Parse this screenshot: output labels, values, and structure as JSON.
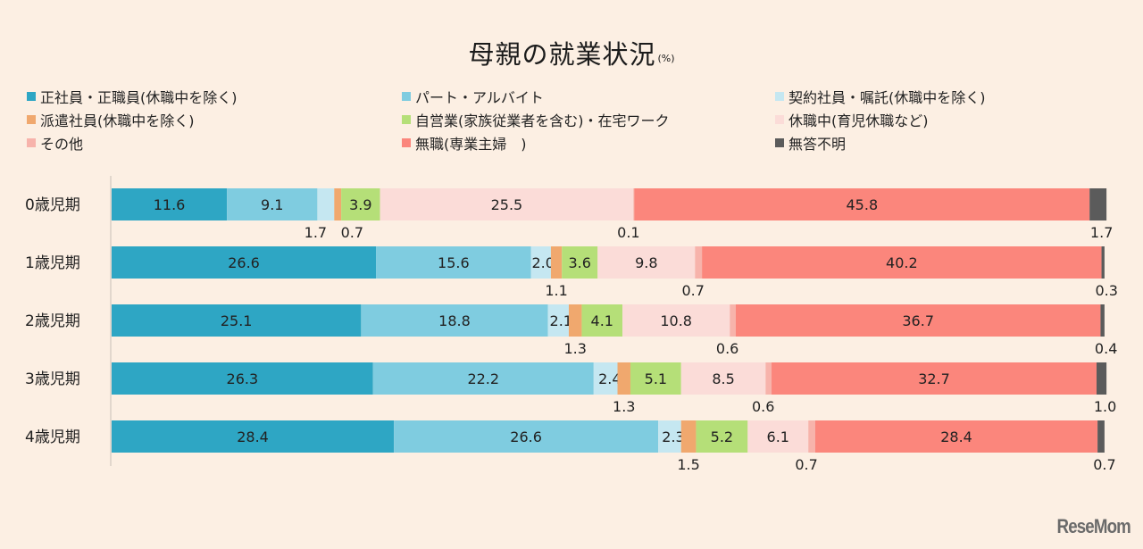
{
  "chart_data": {
    "type": "bar",
    "orientation": "horizontal",
    "stacked": true,
    "title": "母親の就業状況",
    "title_unit": "(%)",
    "xlabel": "",
    "ylabel": "",
    "xlim": [
      0,
      100
    ],
    "grid": false,
    "legend_position": "top",
    "categories": [
      "0歳児期",
      "1歳児期",
      "2歳児期",
      "3歳児期",
      "4歳児期"
    ],
    "series": [
      {
        "name": "正社員・正職員(休職中を除く)",
        "color": "#2ea6c4",
        "values": [
          11.6,
          26.6,
          25.1,
          26.3,
          28.4
        ],
        "label_pos": [
          "inside",
          "inside",
          "inside",
          "inside",
          "inside"
        ]
      },
      {
        "name": "パート・アルバイト",
        "color": "#7fcce0",
        "values": [
          9.1,
          15.6,
          18.8,
          22.2,
          26.6
        ],
        "label_pos": [
          "inside",
          "inside",
          "inside",
          "inside",
          "inside"
        ]
      },
      {
        "name": "契約社員・嘱託(休職中を除く)",
        "color": "#c5e7f1",
        "values": [
          1.7,
          2.0,
          2.1,
          2.4,
          2.3
        ],
        "label_pos": [
          "below",
          "right-edge",
          "right-edge",
          "right-edge",
          "right-edge"
        ]
      },
      {
        "name": "派遣社員(休職中を除く)",
        "color": "#f0a86e",
        "values": [
          0.7,
          1.1,
          1.3,
          1.3,
          1.5
        ],
        "label_pos": [
          "below",
          "below",
          "below",
          "below",
          "below"
        ]
      },
      {
        "name": "自営業(家族従業者を含む)・在宅ワーク",
        "color": "#b5df78",
        "values": [
          3.9,
          3.6,
          4.1,
          5.1,
          5.2
        ],
        "label_pos": [
          "inside",
          "inside",
          "inside",
          "inside",
          "inside"
        ]
      },
      {
        "name": "休職中(育児休職など)",
        "color": "#fbdcd8",
        "values": [
          25.5,
          9.8,
          10.8,
          8.5,
          6.1
        ],
        "label_pos": [
          "inside",
          "inside",
          "inside",
          "inside",
          "inside"
        ]
      },
      {
        "name": "その他",
        "color": "#f7b3ab",
        "values": [
          0.1,
          0.7,
          0.6,
          0.6,
          0.7
        ],
        "label_pos": [
          "below",
          "below",
          "below",
          "below",
          "below"
        ]
      },
      {
        "name": "無職(専業主婦　)",
        "color": "#fb867c",
        "values": [
          45.8,
          40.2,
          36.7,
          32.7,
          28.4
        ],
        "label_pos": [
          "inside",
          "inside",
          "inside",
          "inside",
          "inside"
        ]
      },
      {
        "name": "無答不明",
        "color": "#5b5b5b",
        "values": [
          1.7,
          0.3,
          0.4,
          1.0,
          0.7
        ],
        "label_pos": [
          "below",
          "below",
          "below",
          "below",
          "below"
        ]
      }
    ]
  },
  "brand": "ReseMom"
}
